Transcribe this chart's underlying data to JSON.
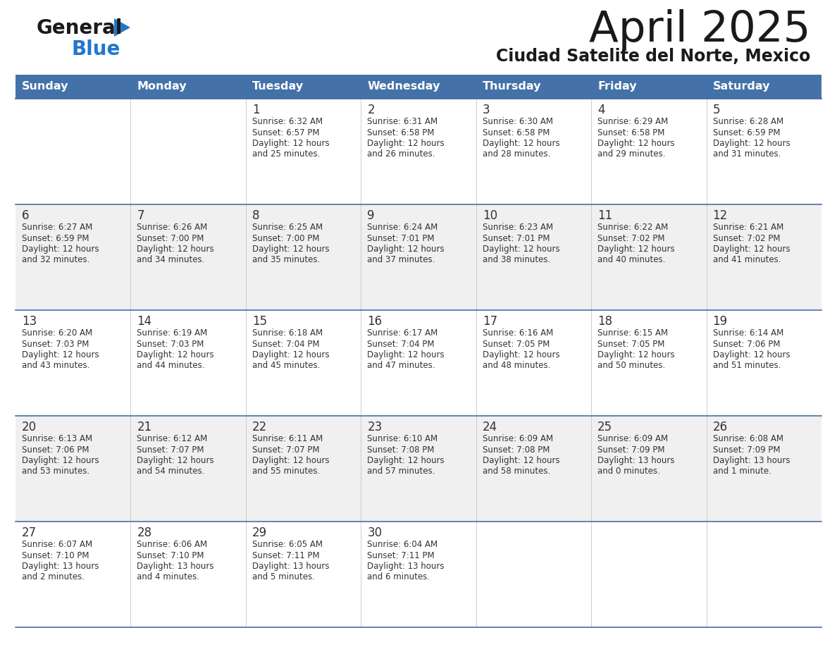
{
  "title": "April 2025",
  "subtitle": "Ciudad Satelite del Norte, Mexico",
  "header_bg": "#4472a8",
  "header_text": "#ffffff",
  "row_bg_white": "#ffffff",
  "row_bg_gray": "#f0f0f0",
  "cell_text": "#333333",
  "separator_color": "#4472a8",
  "days_of_week": [
    "Sunday",
    "Monday",
    "Tuesday",
    "Wednesday",
    "Thursday",
    "Friday",
    "Saturday"
  ],
  "weeks": [
    [
      {
        "day": "",
        "sunrise": "",
        "sunset": "",
        "daylight": ""
      },
      {
        "day": "",
        "sunrise": "",
        "sunset": "",
        "daylight": ""
      },
      {
        "day": "1",
        "sunrise": "Sunrise: 6:32 AM",
        "sunset": "Sunset: 6:57 PM",
        "daylight": "Daylight: 12 hours\nand 25 minutes."
      },
      {
        "day": "2",
        "sunrise": "Sunrise: 6:31 AM",
        "sunset": "Sunset: 6:58 PM",
        "daylight": "Daylight: 12 hours\nand 26 minutes."
      },
      {
        "day": "3",
        "sunrise": "Sunrise: 6:30 AM",
        "sunset": "Sunset: 6:58 PM",
        "daylight": "Daylight: 12 hours\nand 28 minutes."
      },
      {
        "day": "4",
        "sunrise": "Sunrise: 6:29 AM",
        "sunset": "Sunset: 6:58 PM",
        "daylight": "Daylight: 12 hours\nand 29 minutes."
      },
      {
        "day": "5",
        "sunrise": "Sunrise: 6:28 AM",
        "sunset": "Sunset: 6:59 PM",
        "daylight": "Daylight: 12 hours\nand 31 minutes."
      }
    ],
    [
      {
        "day": "6",
        "sunrise": "Sunrise: 6:27 AM",
        "sunset": "Sunset: 6:59 PM",
        "daylight": "Daylight: 12 hours\nand 32 minutes."
      },
      {
        "day": "7",
        "sunrise": "Sunrise: 6:26 AM",
        "sunset": "Sunset: 7:00 PM",
        "daylight": "Daylight: 12 hours\nand 34 minutes."
      },
      {
        "day": "8",
        "sunrise": "Sunrise: 6:25 AM",
        "sunset": "Sunset: 7:00 PM",
        "daylight": "Daylight: 12 hours\nand 35 minutes."
      },
      {
        "day": "9",
        "sunrise": "Sunrise: 6:24 AM",
        "sunset": "Sunset: 7:01 PM",
        "daylight": "Daylight: 12 hours\nand 37 minutes."
      },
      {
        "day": "10",
        "sunrise": "Sunrise: 6:23 AM",
        "sunset": "Sunset: 7:01 PM",
        "daylight": "Daylight: 12 hours\nand 38 minutes."
      },
      {
        "day": "11",
        "sunrise": "Sunrise: 6:22 AM",
        "sunset": "Sunset: 7:02 PM",
        "daylight": "Daylight: 12 hours\nand 40 minutes."
      },
      {
        "day": "12",
        "sunrise": "Sunrise: 6:21 AM",
        "sunset": "Sunset: 7:02 PM",
        "daylight": "Daylight: 12 hours\nand 41 minutes."
      }
    ],
    [
      {
        "day": "13",
        "sunrise": "Sunrise: 6:20 AM",
        "sunset": "Sunset: 7:03 PM",
        "daylight": "Daylight: 12 hours\nand 43 minutes."
      },
      {
        "day": "14",
        "sunrise": "Sunrise: 6:19 AM",
        "sunset": "Sunset: 7:03 PM",
        "daylight": "Daylight: 12 hours\nand 44 minutes."
      },
      {
        "day": "15",
        "sunrise": "Sunrise: 6:18 AM",
        "sunset": "Sunset: 7:04 PM",
        "daylight": "Daylight: 12 hours\nand 45 minutes."
      },
      {
        "day": "16",
        "sunrise": "Sunrise: 6:17 AM",
        "sunset": "Sunset: 7:04 PM",
        "daylight": "Daylight: 12 hours\nand 47 minutes."
      },
      {
        "day": "17",
        "sunrise": "Sunrise: 6:16 AM",
        "sunset": "Sunset: 7:05 PM",
        "daylight": "Daylight: 12 hours\nand 48 minutes."
      },
      {
        "day": "18",
        "sunrise": "Sunrise: 6:15 AM",
        "sunset": "Sunset: 7:05 PM",
        "daylight": "Daylight: 12 hours\nand 50 minutes."
      },
      {
        "day": "19",
        "sunrise": "Sunrise: 6:14 AM",
        "sunset": "Sunset: 7:06 PM",
        "daylight": "Daylight: 12 hours\nand 51 minutes."
      }
    ],
    [
      {
        "day": "20",
        "sunrise": "Sunrise: 6:13 AM",
        "sunset": "Sunset: 7:06 PM",
        "daylight": "Daylight: 12 hours\nand 53 minutes."
      },
      {
        "day": "21",
        "sunrise": "Sunrise: 6:12 AM",
        "sunset": "Sunset: 7:07 PM",
        "daylight": "Daylight: 12 hours\nand 54 minutes."
      },
      {
        "day": "22",
        "sunrise": "Sunrise: 6:11 AM",
        "sunset": "Sunset: 7:07 PM",
        "daylight": "Daylight: 12 hours\nand 55 minutes."
      },
      {
        "day": "23",
        "sunrise": "Sunrise: 6:10 AM",
        "sunset": "Sunset: 7:08 PM",
        "daylight": "Daylight: 12 hours\nand 57 minutes."
      },
      {
        "day": "24",
        "sunrise": "Sunrise: 6:09 AM",
        "sunset": "Sunset: 7:08 PM",
        "daylight": "Daylight: 12 hours\nand 58 minutes."
      },
      {
        "day": "25",
        "sunrise": "Sunrise: 6:09 AM",
        "sunset": "Sunset: 7:09 PM",
        "daylight": "Daylight: 13 hours\nand 0 minutes."
      },
      {
        "day": "26",
        "sunrise": "Sunrise: 6:08 AM",
        "sunset": "Sunset: 7:09 PM",
        "daylight": "Daylight: 13 hours\nand 1 minute."
      }
    ],
    [
      {
        "day": "27",
        "sunrise": "Sunrise: 6:07 AM",
        "sunset": "Sunset: 7:10 PM",
        "daylight": "Daylight: 13 hours\nand 2 minutes."
      },
      {
        "day": "28",
        "sunrise": "Sunrise: 6:06 AM",
        "sunset": "Sunset: 7:10 PM",
        "daylight": "Daylight: 13 hours\nand 4 minutes."
      },
      {
        "day": "29",
        "sunrise": "Sunrise: 6:05 AM",
        "sunset": "Sunset: 7:11 PM",
        "daylight": "Daylight: 13 hours\nand 5 minutes."
      },
      {
        "day": "30",
        "sunrise": "Sunrise: 6:04 AM",
        "sunset": "Sunset: 7:11 PM",
        "daylight": "Daylight: 13 hours\nand 6 minutes."
      },
      {
        "day": "",
        "sunrise": "",
        "sunset": "",
        "daylight": ""
      },
      {
        "day": "",
        "sunrise": "",
        "sunset": "",
        "daylight": ""
      },
      {
        "day": "",
        "sunrise": "",
        "sunset": "",
        "daylight": ""
      }
    ]
  ],
  "logo_triangle_color": "#2277cc",
  "fig_width": 11.88,
  "fig_height": 9.18,
  "dpi": 100
}
